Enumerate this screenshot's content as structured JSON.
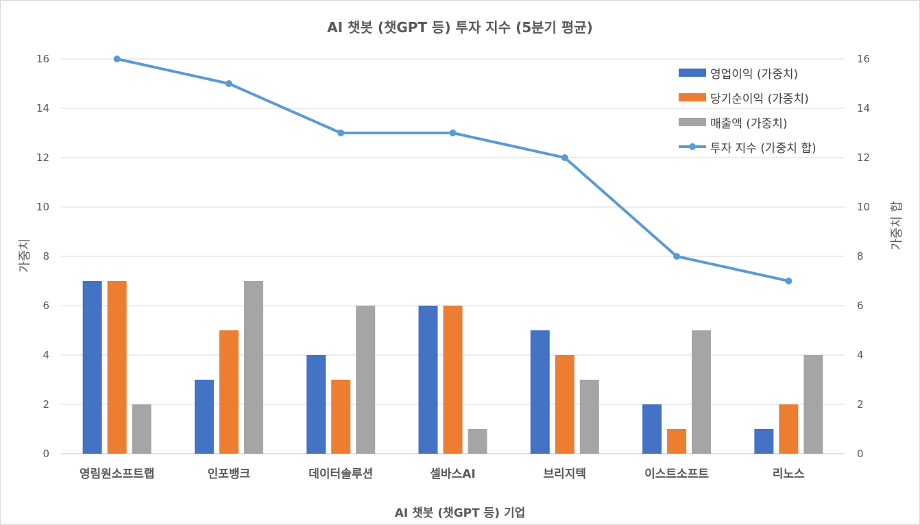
{
  "chart_data": {
    "type": "bar",
    "title": "AI 챗봇 (챗GPT 등) 투자 지수 (5분기 평균)",
    "xlabel": "AI 챗봇 (챗GPT 등)  기업",
    "ylabel": "가중치",
    "y2label": "가중치 합",
    "ylim": [
      0,
      16
    ],
    "y2lim": [
      0,
      16
    ],
    "yticks": [
      "0",
      "2",
      "4",
      "6",
      "8",
      "10",
      "12",
      "14",
      "16"
    ],
    "categories": [
      "영림원소프트랩",
      "인포뱅크",
      "데이터솔루션",
      "셀바스AI",
      "브리지텍",
      "이스트소프트",
      "리노스"
    ],
    "series": [
      {
        "name": "영업이익 (가중치)",
        "type": "bar",
        "color": "#4472c4",
        "values": [
          7,
          3,
          4,
          6,
          5,
          2,
          1
        ]
      },
      {
        "name": "당기순이익 (가중치)",
        "type": "bar",
        "color": "#ed7d31",
        "values": [
          7,
          5,
          3,
          6,
          4,
          1,
          2
        ]
      },
      {
        "name": "매출액  (가중치)",
        "type": "bar",
        "color": "#a5a5a5",
        "values": [
          2,
          7,
          6,
          1,
          3,
          5,
          4
        ]
      },
      {
        "name": "투자 지수 (가중치 합)",
        "type": "line",
        "axis": "right",
        "color": "#5b9bd5",
        "values": [
          16,
          15,
          13,
          13,
          12,
          8,
          7
        ]
      }
    ],
    "grid": true,
    "legend_position": "top-right"
  }
}
